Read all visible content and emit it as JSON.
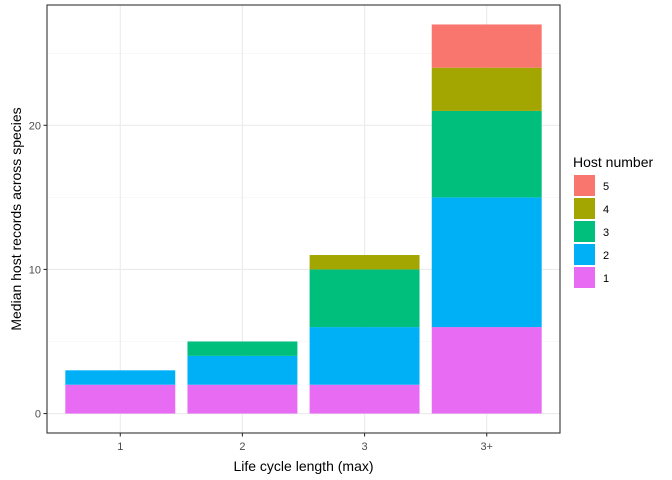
{
  "chart_data": {
    "type": "bar",
    "stacked": true,
    "categories": [
      "1",
      "2",
      "3",
      "3+"
    ],
    "series": [
      {
        "name": "1",
        "color": "#E76BF3",
        "values": [
          2,
          2,
          2,
          6
        ]
      },
      {
        "name": "2",
        "color": "#00B0F6",
        "values": [
          1,
          2,
          4,
          9
        ]
      },
      {
        "name": "3",
        "color": "#00BF7D",
        "values": [
          0,
          1,
          4,
          6
        ]
      },
      {
        "name": "4",
        "color": "#A3A500",
        "values": [
          0,
          0,
          1,
          3
        ]
      },
      {
        "name": "5",
        "color": "#F8766D",
        "values": [
          0,
          0,
          0,
          3
        ]
      }
    ],
    "xlabel": "Life cycle length (max)",
    "ylabel": "Median host records across species",
    "ylim": [
      -1.35,
      28.35
    ],
    "yticks": [
      0,
      10,
      20
    ],
    "ytick_labels": [
      "0",
      "10",
      "20"
    ],
    "grid": true,
    "theme": "bw",
    "legend": {
      "title": "Host number",
      "placement": "right",
      "order": [
        "5",
        "4",
        "3",
        "2",
        "1"
      ]
    }
  }
}
